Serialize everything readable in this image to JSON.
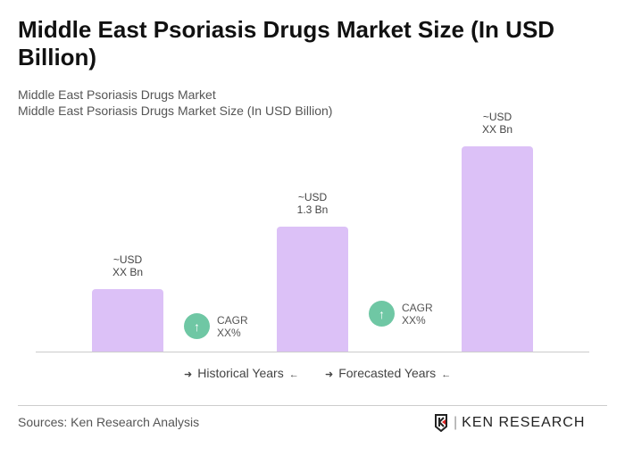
{
  "title": "Middle East Psoriasis Drugs Market Size (In USD Billion)",
  "subtitle1": "Middle East Psoriasis Drugs Market",
  "subtitle2": "Middle East Psoriasis Drugs Market Size (In USD Billion)",
  "chart_data": {
    "type": "bar",
    "title": "Middle East Psoriasis Drugs Market Size (In USD Billion)",
    "categories": [
      "",
      "",
      ""
    ],
    "values": [
      null,
      1.3,
      null
    ],
    "data_labels": [
      [
        "~USD",
        "XX Bn"
      ],
      [
        "~USD",
        "1.3 Bn"
      ],
      [
        "~USD",
        "XX Bn"
      ]
    ],
    "cagr": [
      [
        "CAGR",
        "XX%"
      ],
      [
        "CAGR",
        "XX%"
      ]
    ],
    "legend": [
      "Historical Years",
      "Forecasted Years"
    ],
    "bar_color": "#dcc1f7",
    "cagr_color": "#6fc7a4",
    "grid": false
  },
  "sources": "Sources: Ken Research Analysis",
  "logo": "KEN RESEARCH"
}
